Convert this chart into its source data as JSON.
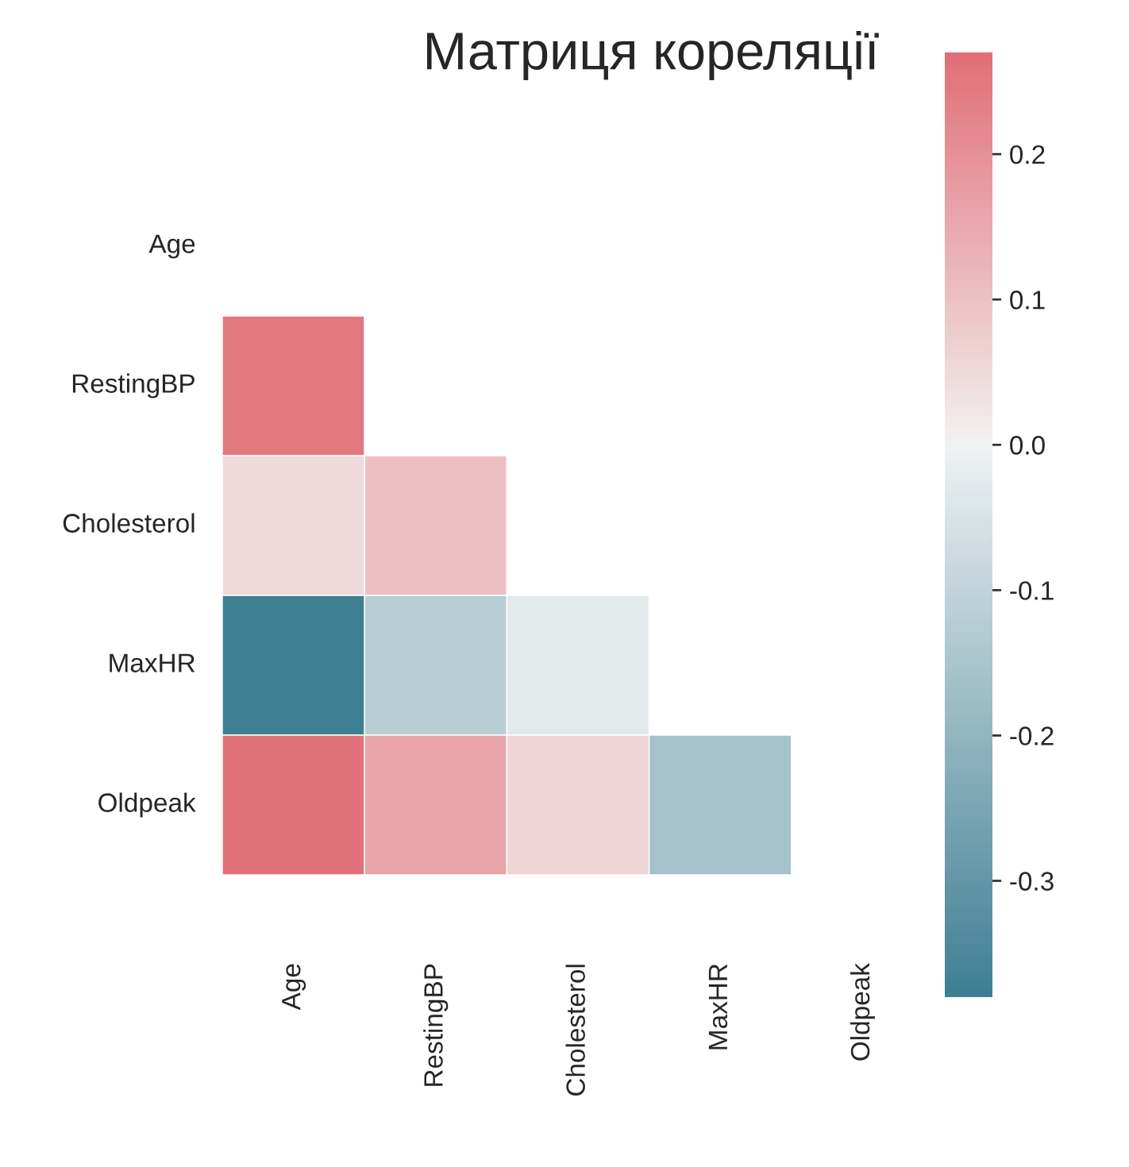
{
  "chart_data": {
    "type": "heatmap",
    "title": "Матриця кореляції",
    "categories": [
      "Age",
      "RestingBP",
      "Cholesterol",
      "MaxHR",
      "Oldpeak"
    ],
    "y_categories": [
      "Age",
      "RestingBP",
      "Cholesterol",
      "MaxHR",
      "Oldpeak"
    ],
    "cells": [
      [
        null,
        null,
        null,
        null,
        null
      ],
      [
        0.25,
        null,
        null,
        null,
        null
      ],
      [
        0.05,
        0.1,
        null,
        null,
        null
      ],
      [
        -0.38,
        -0.12,
        -0.03,
        null,
        null
      ],
      [
        0.26,
        0.16,
        0.06,
        -0.16,
        null
      ]
    ],
    "clim": [
      -0.38,
      0.27
    ],
    "cticks": [
      -0.3,
      -0.2,
      -0.1,
      {
        "value": 0,
        "label": "0.0"
      },
      0.1,
      0.2
    ]
  }
}
